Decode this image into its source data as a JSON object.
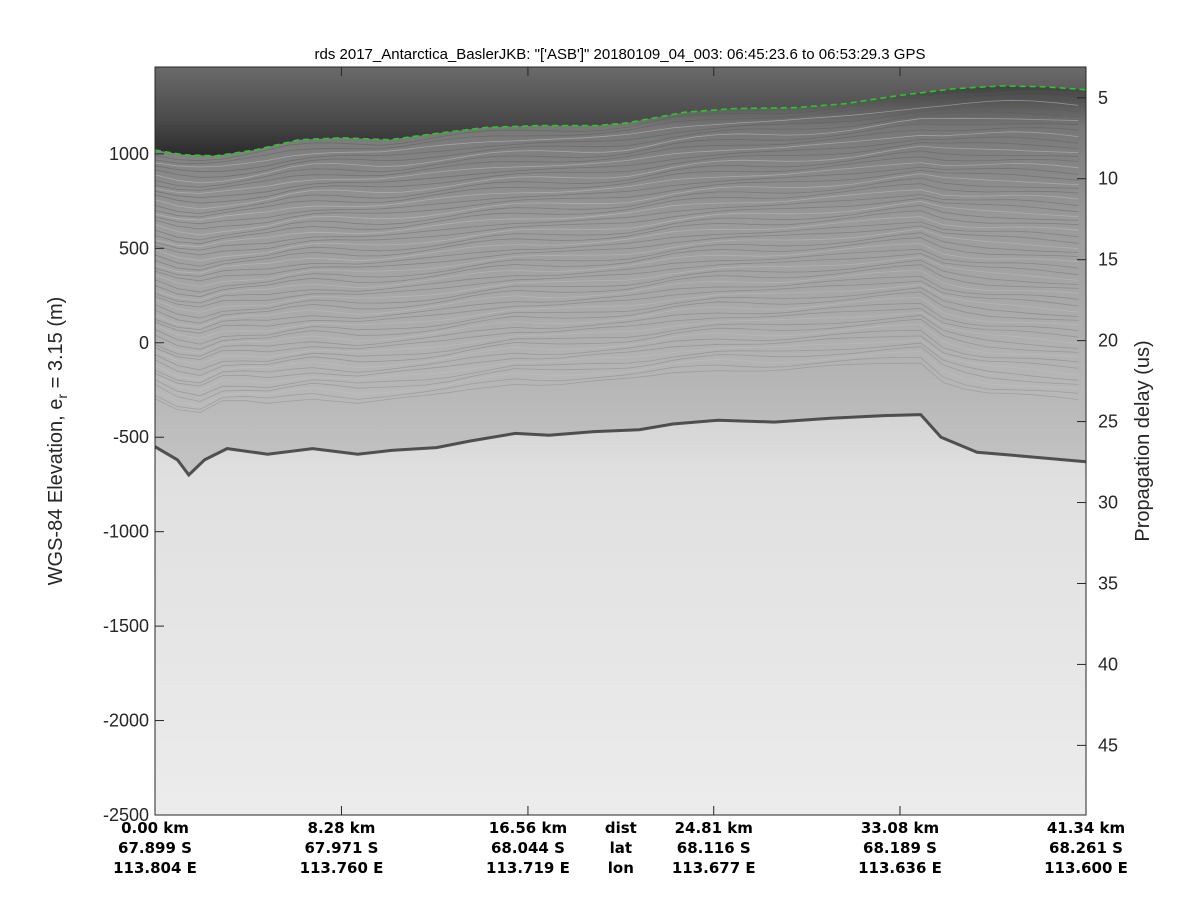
{
  "chart_data": {
    "type": "line",
    "title": "rds 2017_Antarctica_BaslerJKB: \"['ASB']\"  20180109_04_003: 06:45:23.6 to 06:53:29.3 GPS",
    "ylabel_parts": {
      "main": "WGS-84 Elevation, e",
      "sub": "r",
      "rest": " = 3.15 (m)"
    },
    "ylabel_right": "Propagation delay (us)",
    "xlim_km": [
      0,
      41.34
    ],
    "ylim": [
      -2500,
      1460
    ],
    "ylim_right": [
      3.1,
      49.3
    ],
    "yticks": [
      1000,
      500,
      0,
      -500,
      -1000,
      -1500,
      -2000,
      -2500
    ],
    "yticks_right": [
      5,
      10,
      15,
      20,
      25,
      30,
      35,
      40,
      45
    ],
    "bottom_labels": {
      "row_names": [
        "dist",
        "lat",
        "lon"
      ],
      "columns": [
        {
          "km": 0.0,
          "dist": "0.00 km",
          "lat": "67.899 S",
          "lon": "113.804 E"
        },
        {
          "km": 8.28,
          "dist": "8.28 km",
          "lat": "67.971 S",
          "lon": "113.760 E"
        },
        {
          "km": 16.56,
          "dist": "16.56 km",
          "lat": "68.044 S",
          "lon": "113.719 E"
        },
        {
          "km": 24.81,
          "dist": "24.81 km",
          "lat": "68.116 S",
          "lon": "113.677 E"
        },
        {
          "km": 33.08,
          "dist": "33.08 km",
          "lat": "68.189 S",
          "lon": "113.636 E"
        },
        {
          "km": 41.34,
          "dist": "41.34 km",
          "lat": "68.261 S",
          "lon": "113.600 E"
        }
      ]
    },
    "grid": false,
    "series": [
      {
        "style": "dashed",
        "color": "#22cc22",
        "x_km": [
          0,
          1.3,
          2.7,
          4.4,
          6.4,
          8.3,
          10.4,
          12.6,
          14.7,
          17.0,
          19.6,
          21.0,
          23.5,
          25.7,
          28.4,
          30.6,
          33.1,
          35.5,
          37.6,
          39.5,
          41.34
        ],
        "y": [
          1020,
          995,
          990,
          1020,
          1075,
          1085,
          1075,
          1110,
          1140,
          1150,
          1150,
          1165,
          1220,
          1240,
          1245,
          1265,
          1310,
          1345,
          1360,
          1355,
          1340
        ]
      }
    ],
    "echogram": {
      "colormap": "gray",
      "bed_x_km": [
        0,
        1.0,
        1.5,
        2.2,
        3.2,
        5.0,
        7.0,
        9.0,
        10.5,
        12.5,
        14.0,
        16.0,
        17.5,
        19.5,
        21.5,
        23.0,
        25.0,
        27.5,
        30.0,
        32.5,
        34.0,
        34.9,
        36.5,
        38.5,
        41.34
      ],
      "bed_y": [
        -550,
        -620,
        -700,
        -620,
        -560,
        -590,
        -560,
        -590,
        -570,
        -555,
        -520,
        -480,
        -490,
        -470,
        -460,
        -430,
        -410,
        -420,
        -400,
        -385,
        -380,
        -500,
        -580,
        -600,
        -630
      ]
    }
  }
}
